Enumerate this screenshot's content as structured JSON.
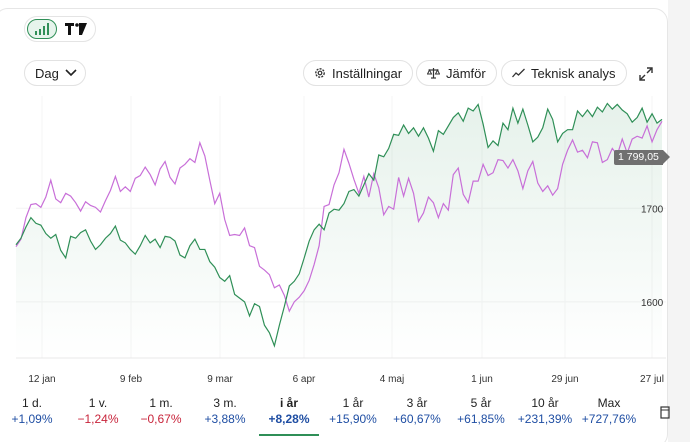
{
  "toolbar": {
    "chart_toggle_icon": "line-chart-icon",
    "tv_logo_text": "TV",
    "interval_label": "Dag",
    "settings_label": "Inställningar",
    "compare_label": "Jämför",
    "technical_label": "Teknisk analys"
  },
  "colors": {
    "primary_series": "#2f8f57",
    "compare_series": "#c86fd8",
    "positive": "#1f4ea3",
    "negative": "#c8243b"
  },
  "price_badge": "1 799,05",
  "chart_data": {
    "type": "line",
    "x_ticks": [
      "12 jan",
      "9 feb",
      "9 mar",
      "6 apr",
      "4 maj",
      "1 jun",
      "29 jun",
      "27 jul"
    ],
    "y_ticks": [
      "1600",
      "1700"
    ],
    "ylim": [
      1540,
      1820
    ],
    "last_value": 1799.05,
    "series": [
      {
        "name": "",
        "color": "#2f8f57",
        "values": [
          1661,
          1668,
          1680,
          1690,
          1684,
          1682,
          1673,
          1668,
          1672,
          1655,
          1647,
          1670,
          1668,
          1674,
          1677,
          1665,
          1656,
          1661,
          1668,
          1673,
          1681,
          1666,
          1663,
          1656,
          1651,
          1660,
          1671,
          1663,
          1667,
          1658,
          1670,
          1669,
          1665,
          1650,
          1647,
          1660,
          1667,
          1656,
          1656,
          1643,
          1637,
          1626,
          1622,
          1628,
          1608,
          1604,
          1600,
          1585,
          1598,
          1595,
          1575,
          1567,
          1553,
          1575,
          1595,
          1617,
          1622,
          1630,
          1647,
          1665,
          1677,
          1683,
          1677,
          1695,
          1699,
          1698,
          1705,
          1718,
          1720,
          1713,
          1725,
          1737,
          1730,
          1757,
          1755,
          1764,
          1779,
          1778,
          1789,
          1780,
          1786,
          1777,
          1786,
          1775,
          1761,
          1783,
          1779,
          1788,
          1797,
          1802,
          1793,
          1807,
          1804,
          1811,
          1790,
          1765,
          1772,
          1767,
          1791,
          1784,
          1807,
          1791,
          1806,
          1789,
          1771,
          1776,
          1786,
          1806,
          1795,
          1771,
          1780,
          1784,
          1784,
          1804,
          1798,
          1805,
          1798,
          1808,
          1803,
          1812,
          1806,
          1811,
          1805,
          1801,
          1792,
          1797,
          1807,
          1792,
          1801,
          1791,
          1795
        ]
      },
      {
        "name": "",
        "color": "#c86fd8",
        "values": [
          1659,
          1667,
          1690,
          1704,
          1705,
          1701,
          1712,
          1730,
          1710,
          1706,
          1716,
          1713,
          1706,
          1697,
          1707,
          1703,
          1701,
          1696,
          1708,
          1719,
          1734,
          1718,
          1723,
          1718,
          1732,
          1735,
          1744,
          1736,
          1725,
          1742,
          1750,
          1733,
          1726,
          1743,
          1747,
          1753,
          1749,
          1770,
          1756,
          1730,
          1705,
          1716,
          1688,
          1671,
          1672,
          1671,
          1679,
          1660,
          1658,
          1638,
          1634,
          1629,
          1615,
          1618,
          1607,
          1590,
          1600,
          1605,
          1612,
          1623,
          1640,
          1660,
          1702,
          1704,
          1725,
          1738,
          1763,
          1748,
          1731,
          1716,
          1734,
          1712,
          1737,
          1722,
          1693,
          1702,
          1699,
          1733,
          1713,
          1732,
          1716,
          1686,
          1695,
          1712,
          1706,
          1690,
          1705,
          1698,
          1736,
          1743,
          1715,
          1706,
          1729,
          1729,
          1747,
          1735,
          1738,
          1752,
          1751,
          1743,
          1752,
          1740,
          1721,
          1740,
          1750,
          1727,
          1718,
          1724,
          1714,
          1721,
          1747,
          1762,
          1773,
          1760,
          1762,
          1754,
          1771,
          1770,
          1749,
          1752,
          1764,
          1757,
          1774,
          1759,
          1774,
          1777,
          1775,
          1788,
          1771,
          1784,
          1793
        ]
      }
    ]
  },
  "periods": [
    {
      "label": "1 d.",
      "change": "+1,09%",
      "sign": "pos"
    },
    {
      "label": "1 v.",
      "change": "−1,24%",
      "sign": "neg"
    },
    {
      "label": "1 m.",
      "change": "−0,67%",
      "sign": "neg"
    },
    {
      "label": "3 m.",
      "change": "+3,88%",
      "sign": "pos"
    },
    {
      "label": "i år",
      "change": "+8,28%",
      "sign": "pos",
      "active": true
    },
    {
      "label": "1 år",
      "change": "+15,90%",
      "sign": "pos"
    },
    {
      "label": "3 år",
      "change": "+60,67%",
      "sign": "pos"
    },
    {
      "label": "5 år",
      "change": "+61,85%",
      "sign": "pos"
    },
    {
      "label": "10 år",
      "change": "+231,39%",
      "sign": "pos"
    },
    {
      "label": "Max",
      "change": "+727,76%",
      "sign": "pos"
    }
  ]
}
